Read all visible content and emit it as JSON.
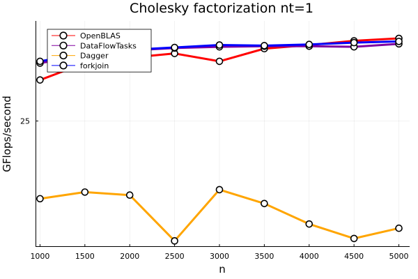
{
  "chart_data": {
    "type": "line",
    "title": "Cholesky factorization nt=1",
    "xlabel": "n",
    "ylabel": "GFlops/second",
    "x": [
      1000,
      1500,
      2000,
      2500,
      3000,
      3500,
      4000,
      4500,
      5000
    ],
    "xticks": [
      1000,
      1500,
      2000,
      2500,
      3000,
      3500,
      4000,
      4500,
      5000
    ],
    "xlim": [
      950,
      5120
    ],
    "yticks": [
      25
    ],
    "ylim": [
      4.1,
      41.6
    ],
    "grid": true,
    "legend_position": "top-left",
    "series": [
      {
        "name": "OpenBLAS",
        "color": "#ff0000",
        "values": [
          31.8,
          34.6,
          35.5,
          36.2,
          34.9,
          37.0,
          37.6,
          38.3,
          38.7
        ]
      },
      {
        "name": "DataFlowTasks",
        "color": "#8000a0",
        "values": [
          34.6,
          35.9,
          36.7,
          37.1,
          37.3,
          37.4,
          37.4,
          37.3,
          37.8
        ]
      },
      {
        "name": "Dagger",
        "color": "#ffa500",
        "values": [
          12.1,
          13.2,
          12.7,
          5.1,
          13.6,
          11.3,
          7.9,
          5.5,
          7.2
        ]
      },
      {
        "name": "forkjoin",
        "color": "#0000ff",
        "values": [
          34.9,
          36.2,
          36.8,
          37.2,
          37.6,
          37.5,
          37.7,
          38.0,
          38.2
        ]
      }
    ]
  }
}
